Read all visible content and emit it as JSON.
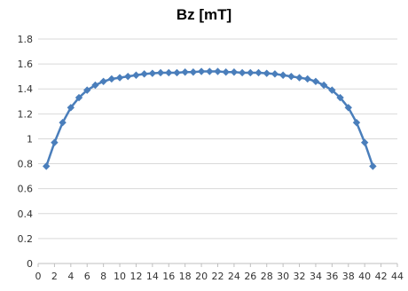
{
  "chart_data": {
    "type": "line",
    "title": "Bz [mT]",
    "xlabel": "",
    "ylabel": "",
    "xlim": [
      0,
      44
    ],
    "ylim": [
      0,
      1.8
    ],
    "x_ticks": [
      0,
      2,
      4,
      6,
      8,
      10,
      12,
      14,
      16,
      18,
      20,
      22,
      24,
      26,
      28,
      30,
      32,
      34,
      36,
      38,
      40,
      42,
      44
    ],
    "y_ticks": [
      0,
      0.2,
      0.4,
      0.6,
      0.8,
      1,
      1.2,
      1.4,
      1.6,
      1.8
    ],
    "y_tick_labels": [
      "0",
      "0.2",
      "0.4",
      "0.6",
      "0.8",
      "1",
      "1.2",
      "1.4",
      "1.6",
      "1.8"
    ],
    "grid": "horizontal",
    "legend": "none",
    "series": [
      {
        "color": "#4a7ebb",
        "marker": "diamond",
        "x": [
          1,
          2,
          3,
          4,
          5,
          6,
          7,
          8,
          9,
          10,
          11,
          12,
          13,
          14,
          15,
          16,
          17,
          18,
          19,
          20,
          21,
          22,
          23,
          24,
          25,
          26,
          27,
          28,
          29,
          30,
          31,
          32,
          33,
          34,
          35,
          36,
          37,
          38,
          39,
          40,
          41
        ],
        "y": [
          0.78,
          0.97,
          1.13,
          1.25,
          1.33,
          1.39,
          1.43,
          1.46,
          1.48,
          1.49,
          1.5,
          1.51,
          1.52,
          1.525,
          1.53,
          1.53,
          1.53,
          1.535,
          1.535,
          1.54,
          1.54,
          1.54,
          1.535,
          1.535,
          1.53,
          1.53,
          1.53,
          1.525,
          1.52,
          1.51,
          1.5,
          1.49,
          1.48,
          1.46,
          1.43,
          1.39,
          1.33,
          1.25,
          1.13,
          0.97,
          0.78
        ]
      }
    ]
  }
}
